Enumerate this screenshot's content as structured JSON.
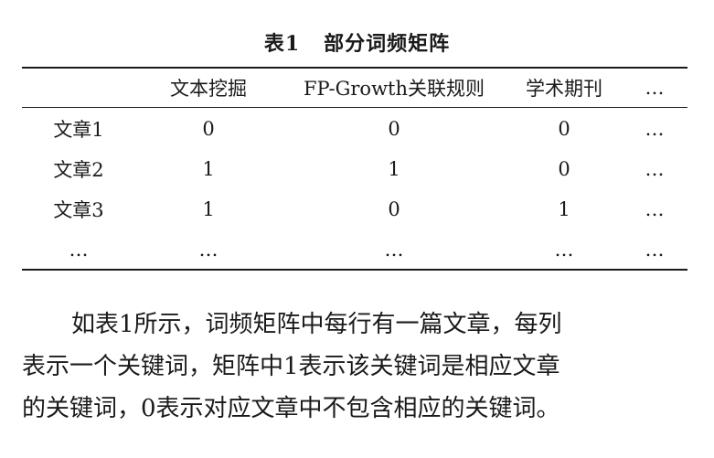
{
  "caption": {
    "label": "表1",
    "title": "部分词频矩阵"
  },
  "table": {
    "headers": [
      "",
      "文本挖掘",
      "FP-Growth关联规则",
      "学术期刊",
      "…"
    ],
    "rows": [
      [
        "文章1",
        "0",
        "0",
        "0",
        "…"
      ],
      [
        "文章2",
        "1",
        "1",
        "0",
        "…"
      ],
      [
        "文章3",
        "1",
        "0",
        "1",
        "…"
      ],
      [
        "…",
        "…",
        "…",
        "…",
        "…"
      ]
    ]
  },
  "paragraph": {
    "lines": [
      "如表1所示，词频矩阵中每行有一篇文章，每列",
      "表示一个关键词，矩阵中1表示该关键词是相应文章",
      "的关键词，0表示对应文章中不包含相应的关键词。"
    ]
  }
}
